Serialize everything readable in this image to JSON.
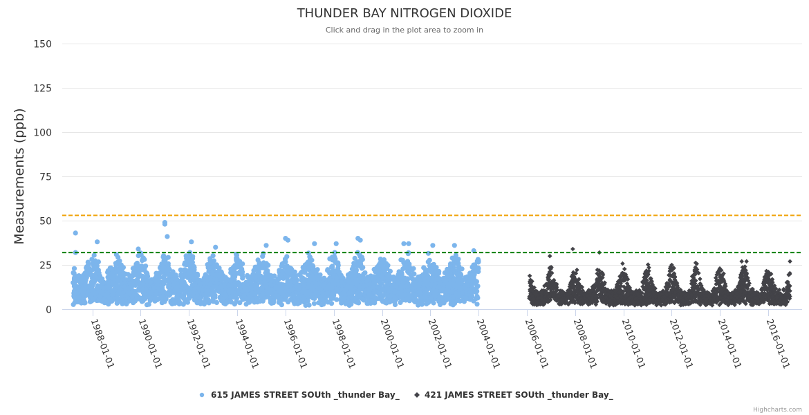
{
  "chart_data": {
    "type": "scatter",
    "title": "THUNDER BAY NITROGEN DIOXIDE",
    "subtitle": "Click and drag in the plot area to zoom in",
    "ylabel": "Measurements (ppb)",
    "xlabel": "",
    "ylim": [
      0,
      150
    ],
    "yticks": [
      "0",
      "25",
      "50",
      "75",
      "100",
      "125",
      "150"
    ],
    "ytick_values": [
      0,
      25,
      50,
      75,
      100,
      125,
      150
    ],
    "xlim": [
      1986.75,
      2017.4
    ],
    "xticks": [
      "1988-01-01",
      "1990-01-01",
      "1992-01-01",
      "1994-01-01",
      "1996-01-01",
      "1998-01-01",
      "2000-01-01",
      "2002-01-01",
      "2004-01-01",
      "2006-01-01",
      "2008-01-01",
      "2010-01-01",
      "2012-01-01",
      "2014-01-01",
      "2016-01-01"
    ],
    "xtick_values": [
      1988,
      1990,
      1992,
      1994,
      1996,
      1998,
      2000,
      2002,
      2004,
      2006,
      2008,
      2010,
      2012,
      2014,
      2016
    ],
    "grid": true,
    "legend_position": "bottom-center",
    "plot_lines": [
      {
        "value": 53,
        "color": "#f0a30a",
        "style": "dashed"
      },
      {
        "value": 32,
        "color": "#008000",
        "style": "dashed"
      }
    ],
    "series": [
      {
        "name": "615 JAMES STREET SOUth _thunder Bay_",
        "color": "#7cb5ec",
        "marker": "circle",
        "x_range": [
          1987.2,
          2004.0
        ],
        "typical_range": [
          0,
          30
        ],
        "notable_points": [
          {
            "x": 1987.3,
            "y": 43
          },
          {
            "x": 1987.3,
            "y": 32
          },
          {
            "x": 1988.2,
            "y": 38
          },
          {
            "x": 1989.9,
            "y": 34
          },
          {
            "x": 1991.0,
            "y": 49
          },
          {
            "x": 1991.0,
            "y": 48
          },
          {
            "x": 1991.1,
            "y": 41
          },
          {
            "x": 1992.1,
            "y": 38
          },
          {
            "x": 1993.1,
            "y": 35
          },
          {
            "x": 1995.2,
            "y": 36
          },
          {
            "x": 1996.0,
            "y": 40
          },
          {
            "x": 1996.1,
            "y": 39
          },
          {
            "x": 1997.2,
            "y": 37
          },
          {
            "x": 1998.1,
            "y": 37
          },
          {
            "x": 1999.0,
            "y": 40
          },
          {
            "x": 1999.1,
            "y": 39
          },
          {
            "x": 2000.9,
            "y": 37
          },
          {
            "x": 2001.1,
            "y": 37
          },
          {
            "x": 2002.1,
            "y": 36
          },
          {
            "x": 2003.0,
            "y": 36
          },
          {
            "x": 2003.8,
            "y": 33
          }
        ]
      },
      {
        "name": "421 JAMES STREET SOUth _thunder Bay_",
        "color": "#434348",
        "marker": "diamond",
        "x_range": [
          2006.1,
          2016.9
        ],
        "typical_range": [
          0,
          25
        ],
        "notable_points": [
          {
            "x": 2006.95,
            "y": 30
          },
          {
            "x": 2007.9,
            "y": 34
          },
          {
            "x": 2009.0,
            "y": 32
          },
          {
            "x": 2012.0,
            "y": 25
          },
          {
            "x": 2014.9,
            "y": 27
          },
          {
            "x": 2015.1,
            "y": 27
          },
          {
            "x": 2016.9,
            "y": 27
          }
        ]
      }
    ]
  },
  "credits": "Highcharts.com"
}
